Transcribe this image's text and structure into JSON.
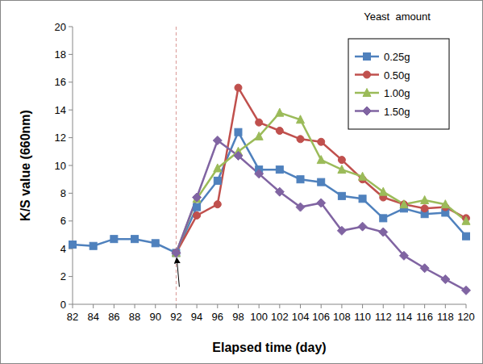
{
  "chart_data": {
    "type": "line",
    "x_label": "Elapsed time (day)",
    "y_label": "K/S value (660nm)",
    "legend_title": "Yeast  amount",
    "legend": "top-right",
    "grid": false,
    "x": [
      82,
      84,
      86,
      88,
      90,
      92,
      94,
      96,
      98,
      100,
      102,
      104,
      106,
      108,
      110,
      112,
      114,
      116,
      118,
      120
    ],
    "xlim": [
      82,
      120
    ],
    "xticks": [
      82,
      84,
      86,
      88,
      90,
      92,
      94,
      96,
      98,
      100,
      102,
      104,
      106,
      108,
      110,
      112,
      114,
      116,
      118,
      120
    ],
    "ylim": [
      0,
      20
    ],
    "yticks": [
      0,
      2,
      4,
      6,
      8,
      10,
      12,
      14,
      16,
      18,
      20
    ],
    "series": [
      {
        "name": "0.25g",
        "color": "#4F81BD",
        "marker": "square",
        "values": [
          4.3,
          4.2,
          4.7,
          4.7,
          4.4,
          3.7,
          7.0,
          8.9,
          12.4,
          9.7,
          9.7,
          9.0,
          8.8,
          7.8,
          7.6,
          6.2,
          6.9,
          6.5,
          6.6,
          4.9
        ]
      },
      {
        "name": "0.50g",
        "color": "#C0504D",
        "marker": "circle",
        "values": [
          null,
          null,
          null,
          null,
          null,
          3.7,
          6.4,
          7.2,
          15.6,
          13.1,
          12.5,
          11.9,
          11.7,
          10.4,
          9.0,
          7.7,
          7.2,
          6.9,
          7.0,
          6.2
        ]
      },
      {
        "name": "1.00g",
        "color": "#9BBB59",
        "marker": "triangle",
        "values": [
          null,
          null,
          null,
          null,
          null,
          3.7,
          7.6,
          9.8,
          11.0,
          12.1,
          13.8,
          13.3,
          10.4,
          9.7,
          9.2,
          8.1,
          7.2,
          7.5,
          7.2,
          6.0
        ]
      },
      {
        "name": "1.50g",
        "color": "#8064A2",
        "marker": "diamond",
        "values": [
          null,
          null,
          null,
          null,
          null,
          3.7,
          7.7,
          11.8,
          10.7,
          9.4,
          8.1,
          7.0,
          7.3,
          5.3,
          5.6,
          5.2,
          3.5,
          2.6,
          1.8,
          1.0
        ]
      }
    ]
  }
}
